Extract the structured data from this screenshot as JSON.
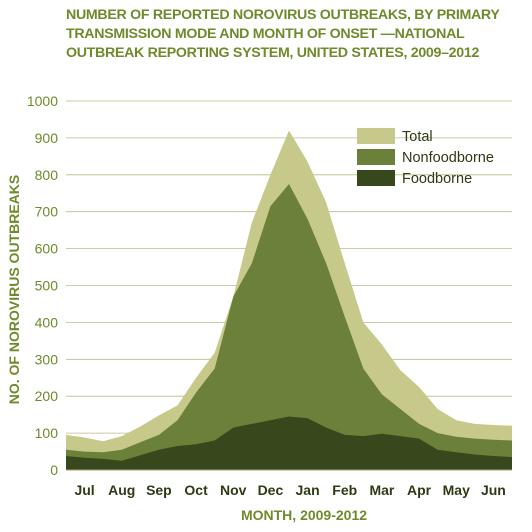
{
  "chart_data": {
    "type": "area",
    "title_lines": [
      "NUMBER OF REPORTED NOROVIRUS OUTBREAKS, BY PRIMARY",
      "TRANSMISSION MODE AND MONTH OF ONSET —NATIONAL",
      "OUTBREAK REPORTING SYSTEM, UNITED STATES, 2009–2012"
    ],
    "xlabel": "MONTH, 2009-2012",
    "ylabel": "NO. OF NOROVIRUS OUTBREAKS",
    "categories": [
      "Jul",
      "Aug",
      "Sep",
      "Oct",
      "Nov",
      "Dec",
      "Jan",
      "Feb",
      "Mar",
      "Apr",
      "May",
      "Jun"
    ],
    "ylim": [
      0,
      1000
    ],
    "yticks": [
      0,
      100,
      200,
      300,
      400,
      500,
      600,
      700,
      800,
      900,
      1000
    ],
    "grid": true,
    "legend_position": "top-right",
    "x": [
      6.5,
      7,
      7.5,
      8,
      8.5,
      9,
      9.5,
      10,
      10.5,
      11,
      11.5,
      12,
      12.5,
      13,
      13.5,
      14,
      14.5,
      15,
      15.5,
      16,
      16.5,
      17,
      17.5,
      18,
      18.5
    ],
    "series": [
      {
        "name": "Total",
        "color": "#c6c98a",
        "values": [
          95,
          88,
          78,
          92,
          118,
          148,
          175,
          250,
          318,
          470,
          670,
          800,
          920,
          835,
          725,
          560,
          400,
          340,
          270,
          225,
          165,
          135,
          125,
          122,
          120
        ]
      },
      {
        "name": "Nonfoodborne",
        "color": "#6b8038",
        "values": [
          55,
          50,
          48,
          55,
          75,
          95,
          135,
          210,
          275,
          470,
          560,
          715,
          775,
          680,
          560,
          415,
          275,
          205,
          165,
          125,
          100,
          90,
          85,
          82,
          80
        ]
      },
      {
        "name": "Foodborne",
        "color": "#37481c",
        "values": [
          38,
          33,
          30,
          25,
          40,
          55,
          65,
          70,
          80,
          115,
          125,
          135,
          145,
          140,
          115,
          95,
          92,
          98,
          92,
          85,
          55,
          48,
          42,
          38,
          35
        ]
      }
    ]
  }
}
